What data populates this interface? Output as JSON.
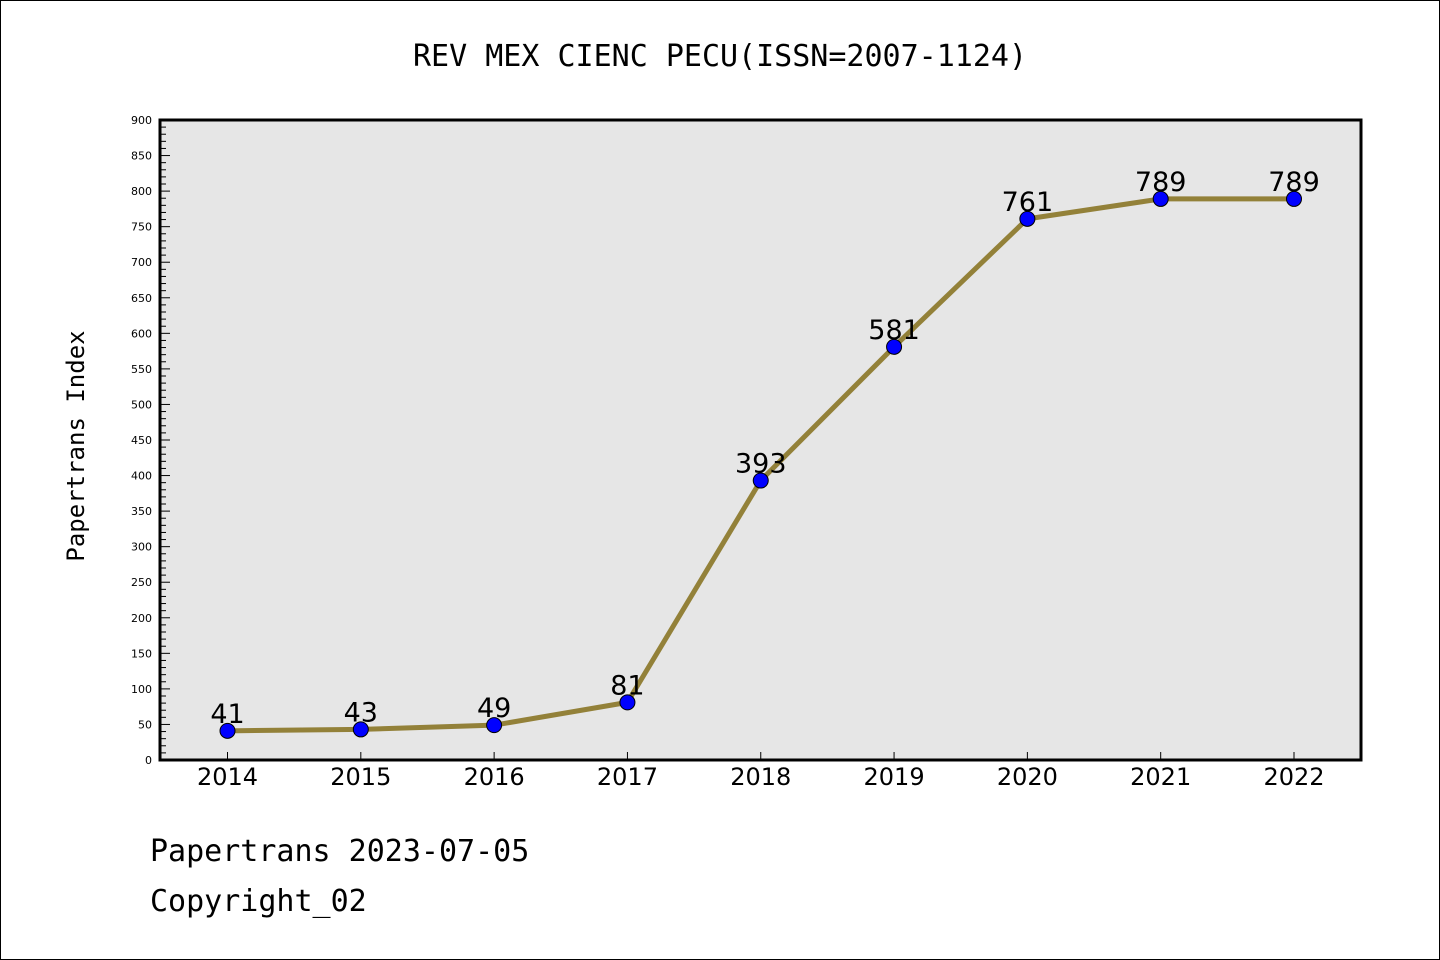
{
  "chart_data": {
    "type": "line",
    "title": "REV MEX CIENC PECU(ISSN=2007-1124)",
    "ylabel": "Papertrans Index",
    "xlabel": "",
    "categories": [
      "2014",
      "2015",
      "2016",
      "2017",
      "2018",
      "2019",
      "2020",
      "2021",
      "2022"
    ],
    "series": [
      {
        "values": [
          41,
          43,
          49,
          81,
          393,
          581,
          761,
          789,
          789
        ]
      }
    ],
    "ylim": [
      0,
      900
    ],
    "yticks": [
      0,
      50,
      100,
      150,
      200,
      250,
      300,
      350,
      400,
      450,
      500,
      550,
      600,
      650,
      700,
      750,
      800,
      850,
      900
    ],
    "grid": false,
    "legend": "none",
    "colors": {
      "line": "#938139",
      "marker": "#0000ff",
      "plot_background": "#e6e6e6"
    }
  },
  "footer": {
    "line1": "Papertrans 2023-07-05",
    "line2": "Copyright_02"
  }
}
